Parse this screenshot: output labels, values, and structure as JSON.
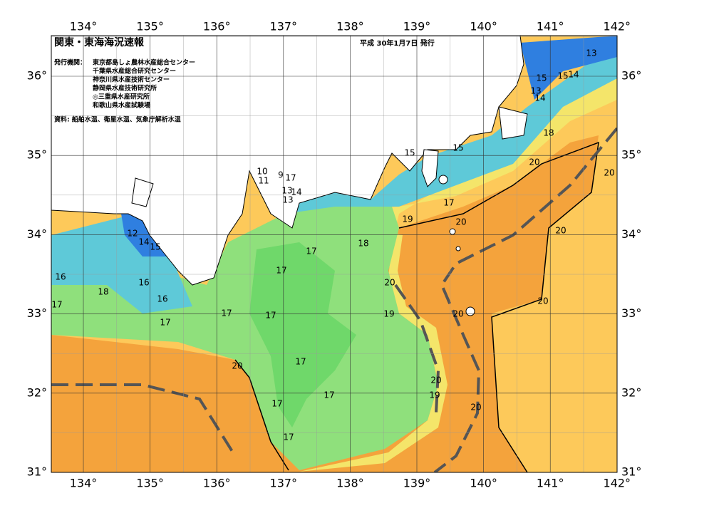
{
  "header": {
    "title": "関東・東海海況速報",
    "date": "平成 30年1月7日 発行",
    "issuers_label": "発行機関：",
    "issuers": [
      "東京都島しょ農林水産総合センター",
      "千葉県水産総合研究センター",
      "神奈川県水産技術センター",
      "静岡県水産技術研究所",
      "◎三重県水産研究所",
      "和歌山県水産試験場"
    ],
    "source": "資料: 船舶水温、衛星水温、気象庁解析水温"
  },
  "map": {
    "lon_labels": [
      "134°",
      "135°",
      "136°",
      "137°",
      "138°",
      "139°",
      "140°",
      "141°",
      "142°"
    ],
    "lat_labels": [
      "31°",
      "32°",
      "33°",
      "34°",
      "35°",
      "36°"
    ],
    "contour_labels": [
      13,
      15,
      15,
      14,
      13,
      14,
      18,
      15,
      15,
      10,
      9,
      17,
      11,
      13,
      14,
      13,
      17,
      19,
      20,
      18,
      17,
      20,
      20,
      20,
      12,
      14,
      15,
      16,
      18,
      16,
      16,
      17,
      17,
      17,
      17,
      19,
      20,
      20,
      20,
      17,
      20,
      17,
      20,
      19,
      17,
      17,
      20,
      17
    ]
  }
}
